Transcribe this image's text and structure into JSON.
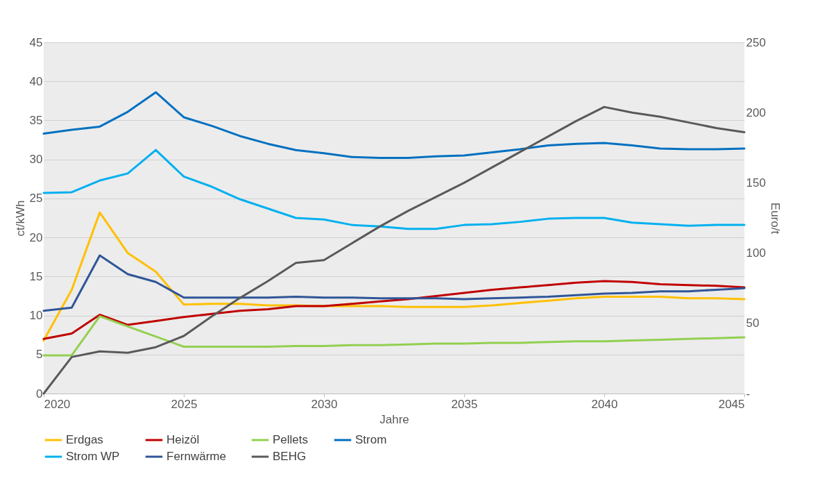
{
  "chart_data": {
    "type": "line",
    "xlabel": "Jahre",
    "ylabel": "ct/kWh",
    "y2label": "Euro/t",
    "x": [
      2020,
      2021,
      2022,
      2023,
      2024,
      2025,
      2026,
      2027,
      2028,
      2029,
      2030,
      2031,
      2032,
      2033,
      2034,
      2035,
      2036,
      2037,
      2038,
      2039,
      2040,
      2041,
      2042,
      2043,
      2044,
      2045
    ],
    "xlim": [
      2020,
      2045
    ],
    "xticks": [
      2020,
      2025,
      2030,
      2035,
      2040,
      2045
    ],
    "ylim": [
      0,
      45
    ],
    "yticks": [
      0,
      5,
      10,
      15,
      20,
      25,
      30,
      35,
      40,
      45
    ],
    "y2lim": [
      0,
      250
    ],
    "y2ticks": [
      {
        "value": 0,
        "label": "-"
      },
      50,
      100,
      150,
      200,
      250
    ],
    "grid": "y",
    "legend": "bottom",
    "marker": "none",
    "line_style": "solid",
    "series": [
      {
        "name": "Erdgas",
        "color": "#ffc000",
        "values": [
          6.8,
          13.3,
          23.2,
          18.0,
          15.6,
          11.4,
          11.5,
          11.5,
          11.3,
          11.3,
          11.2,
          11.2,
          11.2,
          11.1,
          11.1,
          11.1,
          11.3,
          11.6,
          11.9,
          12.2,
          12.4,
          12.4,
          12.4,
          12.2,
          12.2,
          12.1
        ]
      },
      {
        "name": "Heizöl",
        "color": "#c00000",
        "values": [
          7.0,
          7.7,
          10.1,
          8.8,
          9.3,
          9.8,
          10.2,
          10.6,
          10.8,
          11.2,
          11.2,
          11.5,
          11.8,
          12.1,
          12.5,
          12.9,
          13.3,
          13.6,
          13.9,
          14.2,
          14.4,
          14.3,
          14.0,
          13.9,
          13.8,
          13.6
        ]
      },
      {
        "name": "Pellets",
        "color": "#92d050",
        "values": [
          4.9,
          4.9,
          9.9,
          8.6,
          7.3,
          6.0,
          6.0,
          6.0,
          6.0,
          6.1,
          6.1,
          6.2,
          6.2,
          6.3,
          6.4,
          6.4,
          6.5,
          6.5,
          6.6,
          6.7,
          6.7,
          6.8,
          6.9,
          7.0,
          7.1,
          7.2
        ]
      },
      {
        "name": "Strom",
        "color": "#0070c0",
        "values": [
          33.3,
          33.8,
          34.2,
          36.1,
          38.6,
          35.4,
          34.3,
          33.0,
          32.0,
          31.2,
          30.8,
          30.3,
          30.2,
          30.2,
          30.4,
          30.5,
          30.9,
          31.3,
          31.8,
          32.0,
          32.1,
          31.8,
          31.4,
          31.3,
          31.3,
          31.4
        ]
      },
      {
        "name": "Strom WP",
        "color": "#00b0f0",
        "values": [
          25.7,
          25.8,
          27.3,
          28.2,
          31.2,
          27.8,
          26.5,
          24.9,
          23.7,
          22.5,
          22.3,
          21.6,
          21.4,
          21.1,
          21.1,
          21.6,
          21.7,
          22.0,
          22.4,
          22.5,
          22.5,
          21.9,
          21.7,
          21.5,
          21.6,
          21.6
        ]
      },
      {
        "name": "Fernwärme",
        "color": "#2f5597",
        "values": [
          10.6,
          11.0,
          17.7,
          15.3,
          14.3,
          12.3,
          12.3,
          12.3,
          12.3,
          12.4,
          12.3,
          12.3,
          12.2,
          12.2,
          12.2,
          12.1,
          12.2,
          12.3,
          12.4,
          12.6,
          12.8,
          12.9,
          13.1,
          13.1,
          13.3,
          13.5
        ]
      },
      {
        "name": "BEHG",
        "color": "#595959",
        "axis": "y2",
        "values": [
          0,
          26,
          30,
          29,
          33,
          41,
          55,
          68,
          80,
          93,
          95,
          107,
          119,
          130,
          140,
          150,
          161,
          172,
          183,
          194,
          204,
          200,
          197,
          193,
          189,
          186
        ]
      }
    ]
  }
}
